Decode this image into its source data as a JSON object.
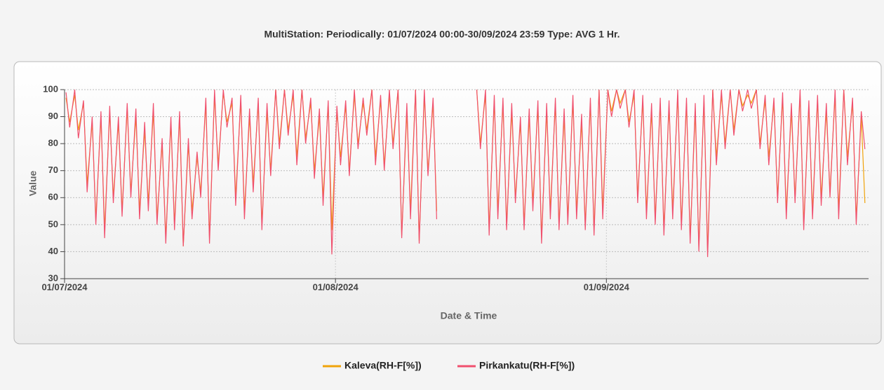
{
  "chart_data": {
    "type": "line",
    "title": "MultiStation:  Periodically: 01/07/2024 00:00-30/09/2024 23:59  Type: AVG 1 Hr.",
    "xlabel": "Date & Time",
    "ylabel": "Value",
    "xlim": [
      "01/07/2024 00:00",
      "30/09/2024 23:59"
    ],
    "xticks": [
      "01/07/2024",
      "01/08/2024",
      "01/09/2024"
    ],
    "ylim": [
      30,
      100
    ],
    "yticks": [
      30,
      40,
      50,
      60,
      70,
      80,
      90,
      100
    ],
    "grid": true,
    "legend": "bottom",
    "x": [
      "01/07/2024 04:00",
      "01/07/2024 14:00",
      "02/07/2024 04:00",
      "02/07/2024 14:00",
      "03/07/2024 04:00",
      "03/07/2024 14:00",
      "04/07/2024 04:00",
      "04/07/2024 14:00",
      "05/07/2024 04:00",
      "05/07/2024 14:00",
      "06/07/2024 04:00",
      "06/07/2024 14:00",
      "07/07/2024 04:00",
      "07/07/2024 14:00",
      "08/07/2024 04:00",
      "08/07/2024 14:00",
      "09/07/2024 04:00",
      "09/07/2024 14:00",
      "10/07/2024 04:00",
      "10/07/2024 14:00",
      "11/07/2024 04:00",
      "11/07/2024 14:00",
      "12/07/2024 04:00",
      "12/07/2024 14:00",
      "13/07/2024 04:00",
      "13/07/2024 14:00",
      "14/07/2024 04:00",
      "14/07/2024 14:00",
      "15/07/2024 04:00",
      "15/07/2024 14:00",
      "16/07/2024 04:00",
      "16/07/2024 14:00",
      "17/07/2024 04:00",
      "17/07/2024 14:00",
      "18/07/2024 04:00",
      "18/07/2024 14:00",
      "19/07/2024 04:00",
      "19/07/2024 14:00",
      "20/07/2024 04:00",
      "20/07/2024 14:00",
      "21/07/2024 04:00",
      "21/07/2024 14:00",
      "22/07/2024 04:00",
      "22/07/2024 14:00",
      "23/07/2024 04:00",
      "23/07/2024 14:00",
      "24/07/2024 04:00",
      "24/07/2024 14:00",
      "25/07/2024 04:00",
      "25/07/2024 14:00",
      "26/07/2024 04:00",
      "26/07/2024 14:00",
      "27/07/2024 04:00",
      "27/07/2024 14:00",
      "28/07/2024 04:00",
      "28/07/2024 14:00",
      "29/07/2024 04:00",
      "29/07/2024 14:00",
      "30/07/2024 04:00",
      "30/07/2024 14:00",
      "31/07/2024 04:00",
      "31/07/2024 14:00",
      "01/08/2024 04:00",
      "01/08/2024 14:00",
      "02/08/2024 04:00",
      "02/08/2024 14:00",
      "03/08/2024 04:00",
      "03/08/2024 14:00",
      "04/08/2024 04:00",
      "04/08/2024 14:00",
      "05/08/2024 04:00",
      "05/08/2024 14:00",
      "06/08/2024 04:00",
      "06/08/2024 14:00",
      "07/08/2024 04:00",
      "07/08/2024 14:00",
      "08/08/2024 04:00",
      "08/08/2024 14:00",
      "09/08/2024 04:00",
      "09/08/2024 14:00",
      "10/08/2024 04:00",
      "10/08/2024 14:00",
      "11/08/2024 04:00",
      "11/08/2024 14:00",
      "12/08/2024 04:00",
      "12/08/2024 14:00",
      "13/08/2024 04:00",
      "13/08/2024 14:00",
      "14/08/2024 04:00",
      "14/08/2024 14:00",
      "15/08/2024 04:00",
      "15/08/2024 14:00",
      "16/08/2024 04:00",
      "16/08/2024 14:00",
      "17/08/2024 04:00",
      "17/08/2024 14:00",
      "18/08/2024 04:00",
      "18/08/2024 14:00",
      "19/08/2024 04:00",
      "19/08/2024 14:00",
      "20/08/2024 04:00",
      "20/08/2024 14:00",
      "21/08/2024 04:00",
      "21/08/2024 14:00",
      "22/08/2024 04:00",
      "22/08/2024 14:00",
      "23/08/2024 04:00",
      "23/08/2024 14:00",
      "24/08/2024 04:00",
      "24/08/2024 14:00",
      "25/08/2024 04:00",
      "25/08/2024 14:00",
      "26/08/2024 04:00",
      "26/08/2024 14:00",
      "27/08/2024 04:00",
      "27/08/2024 14:00",
      "28/08/2024 04:00",
      "28/08/2024 14:00",
      "29/08/2024 04:00",
      "29/08/2024 14:00",
      "30/08/2024 04:00",
      "30/08/2024 14:00",
      "31/08/2024 04:00",
      "31/08/2024 14:00",
      "01/09/2024 04:00",
      "01/09/2024 14:00",
      "02/09/2024 04:00",
      "02/09/2024 14:00",
      "03/09/2024 04:00",
      "03/09/2024 14:00",
      "04/09/2024 04:00",
      "04/09/2024 14:00",
      "05/09/2024 04:00",
      "05/09/2024 14:00",
      "06/09/2024 04:00",
      "06/09/2024 14:00",
      "07/09/2024 04:00",
      "07/09/2024 14:00",
      "08/09/2024 04:00",
      "08/09/2024 14:00",
      "09/09/2024 04:00",
      "09/09/2024 14:00",
      "10/09/2024 04:00",
      "10/09/2024 14:00",
      "11/09/2024 04:00",
      "11/09/2024 14:00",
      "12/09/2024 04:00",
      "12/09/2024 14:00",
      "13/09/2024 04:00",
      "13/09/2024 14:00",
      "14/09/2024 04:00",
      "14/09/2024 14:00",
      "15/09/2024 04:00",
      "15/09/2024 14:00",
      "16/09/2024 04:00",
      "16/09/2024 14:00",
      "17/09/2024 04:00",
      "17/09/2024 14:00",
      "18/09/2024 04:00",
      "18/09/2024 14:00",
      "19/09/2024 04:00",
      "19/09/2024 14:00",
      "20/09/2024 04:00",
      "20/09/2024 14:00",
      "21/09/2024 04:00",
      "21/09/2024 14:00",
      "22/09/2024 04:00",
      "22/09/2024 14:00",
      "23/09/2024 04:00",
      "23/09/2024 14:00",
      "24/09/2024 04:00",
      "24/09/2024 14:00",
      "25/09/2024 04:00",
      "25/09/2024 14:00",
      "26/09/2024 04:00",
      "26/09/2024 14:00",
      "27/09/2024 04:00",
      "27/09/2024 14:00",
      "28/09/2024 04:00",
      "28/09/2024 14:00",
      "29/09/2024 04:00",
      "29/09/2024 14:00",
      "30/09/2024 04:00",
      "30/09/2024 14:00"
    ],
    "series": [
      {
        "name": "Kaleva(RH-F[%])",
        "color": "#f0a30a",
        "values": [
          97,
          88,
          98,
          85,
          95,
          65,
          88,
          52,
          90,
          48,
          92,
          60,
          88,
          55,
          93,
          62,
          90,
          55,
          85,
          58,
          92,
          52,
          80,
          45,
          88,
          50,
          90,
          42,
          80,
          55,
          75,
          62,
          95,
          45,
          98,
          72,
          99,
          88,
          95,
          60,
          96,
          55,
          90,
          65,
          95,
          50,
          92,
          70,
          100,
          80,
          100,
          85,
          98,
          75,
          100,
          82,
          95,
          70,
          90,
          60,
          95,
          48,
          92,
          75,
          94,
          70,
          98,
          80,
          95,
          85,
          100,
          75,
          96,
          72,
          98,
          80,
          100,
          46,
          92,
          55,
          100,
          44,
          98,
          70,
          95,
          55,
          null,
          null,
          null,
          null,
          null,
          null,
          null,
          null,
          100,
          80,
          98,
          48,
          96,
          55,
          95,
          50,
          92,
          60,
          88,
          50,
          90,
          58,
          94,
          45,
          92,
          55,
          95,
          50,
          90,
          52,
          96,
          55,
          88,
          50,
          95,
          48,
          100,
          55,
          100,
          92,
          100,
          95,
          100,
          88,
          98,
          60,
          96,
          55,
          92,
          52,
          95,
          48,
          94,
          55,
          98,
          50,
          95,
          45,
          92,
          42,
          96,
          40,
          100,
          75,
          98,
          80,
          100,
          85,
          100,
          94,
          98,
          95,
          100,
          80,
          96,
          75,
          95,
          60,
          97,
          55,
          92,
          60,
          98,
          50,
          94,
          55,
          96,
          60,
          92,
          62,
          98,
          55,
          100,
          75,
          95,
          52,
          90,
          58
        ]
      },
      {
        "name": "Pirkankatu(RH-F[%])",
        "color": "#f0506e",
        "values": [
          99,
          86,
          100,
          82,
          96,
          62,
          90,
          50,
          92,
          45,
          94,
          58,
          90,
          53,
          95,
          60,
          93,
          52,
          88,
          55,
          95,
          50,
          82,
          43,
          90,
          48,
          92,
          42,
          82,
          52,
          77,
          60,
          97,
          43,
          100,
          70,
          100,
          86,
          97,
          57,
          98,
          52,
          93,
          62,
          97,
          48,
          95,
          68,
          100,
          78,
          100,
          83,
          100,
          72,
          100,
          80,
          97,
          67,
          93,
          57,
          96,
          39,
          94,
          72,
          96,
          68,
          100,
          78,
          97,
          83,
          100,
          72,
          98,
          70,
          100,
          78,
          100,
          45,
          95,
          52,
          100,
          43,
          100,
          68,
          97,
          52,
          null,
          null,
          null,
          null,
          null,
          null,
          null,
          null,
          100,
          78,
          100,
          46,
          98,
          52,
          97,
          48,
          95,
          58,
          90,
          48,
          93,
          55,
          96,
          43,
          95,
          52,
          97,
          48,
          93,
          50,
          98,
          52,
          91,
          48,
          97,
          46,
          100,
          52,
          100,
          90,
          100,
          93,
          100,
          86,
          100,
          58,
          98,
          52,
          95,
          50,
          97,
          46,
          96,
          52,
          100,
          48,
          97,
          43,
          95,
          40,
          98,
          38,
          100,
          72,
          100,
          78,
          100,
          83,
          100,
          92,
          100,
          93,
          100,
          78,
          98,
          72,
          97,
          58,
          99,
          52,
          95,
          58,
          100,
          48,
          96,
          52,
          98,
          57,
          95,
          60,
          100,
          52,
          100,
          72,
          97,
          50,
          92,
          78
        ]
      }
    ]
  }
}
